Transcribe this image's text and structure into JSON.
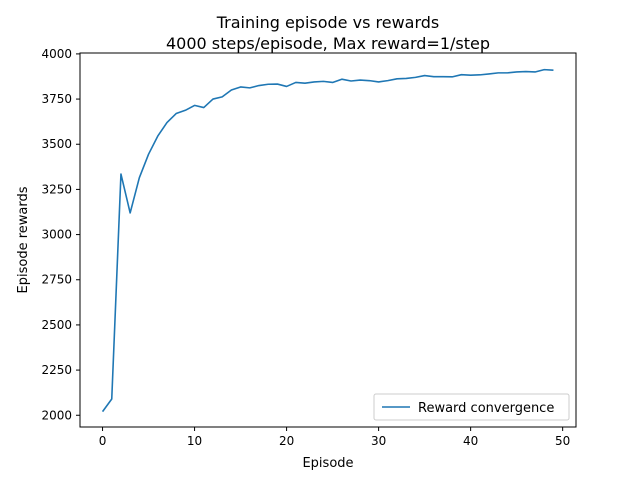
{
  "chart_data": {
    "type": "line",
    "title": "Training episode vs rewards",
    "subtitle": "4000 steps/episode, Max reward=1/step",
    "xlabel": "Episode",
    "ylabel": "Episode rewards",
    "xlim": [
      -2.45,
      51.45
    ],
    "ylim": [
      1935,
      4005
    ],
    "xticks": [
      0,
      10,
      20,
      30,
      40,
      50
    ],
    "yticks": [
      2000,
      2250,
      2500,
      2750,
      3000,
      3250,
      3500,
      3750,
      4000
    ],
    "grid": false,
    "legend_position": "lower-right",
    "series": [
      {
        "name": "Reward convergence",
        "color": "#1f77b4",
        "x": [
          0,
          1,
          2,
          3,
          4,
          5,
          6,
          7,
          8,
          9,
          10,
          11,
          12,
          13,
          14,
          15,
          16,
          17,
          18,
          19,
          20,
          21,
          22,
          23,
          24,
          25,
          26,
          27,
          28,
          29,
          30,
          31,
          32,
          33,
          34,
          35,
          36,
          37,
          38,
          39,
          40,
          41,
          42,
          43,
          44,
          45,
          46,
          47,
          48,
          49
        ],
        "values": [
          2020,
          2090,
          3335,
          3120,
          3315,
          3445,
          3545,
          3620,
          3670,
          3688,
          3715,
          3703,
          3750,
          3762,
          3800,
          3817,
          3812,
          3825,
          3832,
          3833,
          3820,
          3842,
          3838,
          3845,
          3848,
          3842,
          3860,
          3850,
          3855,
          3852,
          3845,
          3852,
          3862,
          3864,
          3870,
          3880,
          3874,
          3874,
          3873,
          3885,
          3882,
          3884,
          3889,
          3895,
          3895,
          3900,
          3902,
          3900,
          3913,
          3910
        ]
      }
    ]
  }
}
